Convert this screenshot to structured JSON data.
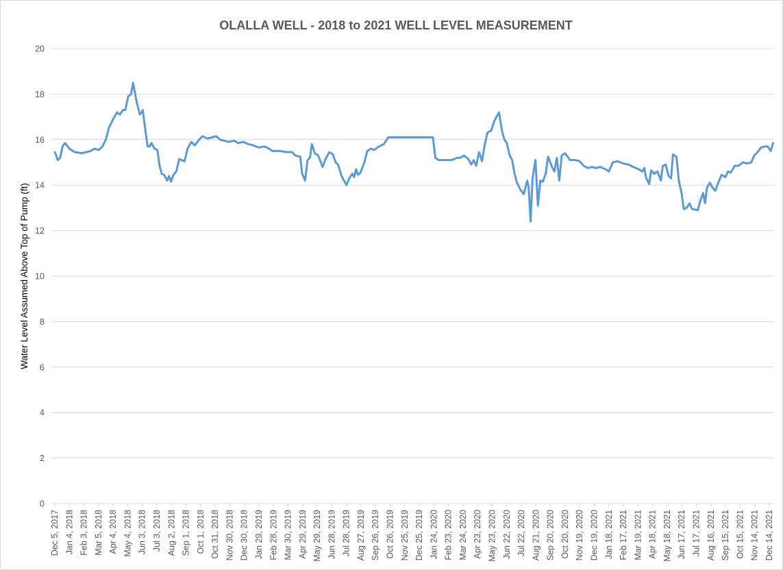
{
  "chart_data": {
    "type": "line",
    "title": "OLALLA WELL - 2018 to 2021 WELL LEVEL MEASUREMENT",
    "y_label": "Water Level Assumed Above Top of Pump (ft)",
    "ylim": [
      0,
      20
    ],
    "yticks": [
      0,
      2,
      4,
      6,
      8,
      10,
      12,
      14,
      16,
      18,
      20
    ],
    "xlim": [
      "Dec 5, 2017",
      "Dec 24, 2021"
    ],
    "xticks": [
      "Dec 5, 2017",
      "Jan 4, 2018",
      "Feb 3, 2018",
      "Mar 5, 2018",
      "Apr 4, 2018",
      "May 4, 2018",
      "Jun 3, 2018",
      "Jul 3, 2018",
      "Aug 2, 2018",
      "Sep 1, 2018",
      "Oct 1, 2018",
      "Oct 31, 2018",
      "Nov 30, 2018",
      "Dec 30, 2018",
      "Jan 29, 2019",
      "Feb 28, 2019",
      "Mar 30, 2019",
      "Apr 29, 2019",
      "May 29, 2019",
      "Jun 28, 2019",
      "Jul 28, 2019",
      "Aug 27, 2019",
      "Sep 26, 2019",
      "Oct 26, 2019",
      "Nov 25, 2019",
      "Dec 25, 2019",
      "Jan 24, 2020",
      "Feb 23, 2020",
      "Mar 24, 2020",
      "Apr 23, 2020",
      "May 23, 2020",
      "Jun 22, 2020",
      "Jul 22, 2020",
      "Aug 21, 2020",
      "Sep 20, 2020",
      "Oct 20, 2020",
      "Nov 19, 2020",
      "Dec 19, 2020",
      "Jan 18, 2021",
      "Feb 17, 2021",
      "Mar 19, 2021",
      "Apr 18, 2021",
      "May 18, 2021",
      "Jun 17, 2021",
      "Jul 17, 2021",
      "Aug 16, 2021",
      "Sep 15, 2021",
      "Oct 15, 2021",
      "Nov 14, 2021",
      "Dec 14, 2021"
    ],
    "grid": true,
    "x": [
      "Dec 5, 2017",
      "Dec 7, 2017",
      "Dec 11, 2017",
      "Dec 16, 2017",
      "Dec 21, 2017",
      "Dec 26, 2017",
      "Jan 4, 2018",
      "Jan 15, 2018",
      "Jan 30, 2018",
      "Feb 17, 2018",
      "Feb 24, 2018",
      "Mar 6, 2018",
      "Mar 13, 2018",
      "Mar 20, 2018",
      "Mar 26, 2018",
      "Apr 4, 2018",
      "Apr 12, 2018",
      "Apr 18, 2018",
      "Apr 24, 2018",
      "Apr 29, 2018",
      "May 5, 2018",
      "May 11, 2018",
      "May 15, 2018",
      "May 23, 2018",
      "May 29, 2018",
      "Jun 4, 2018",
      "Jun 10, 2018",
      "Jun 14, 2018",
      "Jun 18, 2018",
      "Jun 22, 2018",
      "Jun 28, 2018",
      "Jul 4, 2018",
      "Jul 9, 2018",
      "Jul 13, 2018",
      "Jul 18, 2018",
      "Jul 24, 2018",
      "Jul 28, 2018",
      "Aug 1, 2018",
      "Aug 6, 2018",
      "Aug 12, 2018",
      "Aug 18, 2018",
      "Aug 23, 2018",
      "Aug 29, 2018",
      "Sep 4, 2018",
      "Sep 12, 2018",
      "Sep 19, 2018",
      "Sep 28, 2018",
      "Oct 5, 2018",
      "Oct 15, 2018",
      "Oct 25, 2018",
      "Nov 2, 2018",
      "Nov 10, 2018",
      "Nov 19, 2018",
      "Nov 27, 2018",
      "Dec 10, 2018",
      "Dec 17, 2018",
      "Dec 28, 2018",
      "Jan 7, 2019",
      "Jan 17, 2019",
      "Jan 29, 2019",
      "Feb 9, 2019",
      "Feb 19, 2019",
      "Feb 26, 2019",
      "Mar 13, 2019",
      "Mar 27, 2019",
      "Apr 7, 2019",
      "Apr 14, 2019",
      "Apr 24, 2019",
      "Apr 28, 2019",
      "May 4, 2019",
      "May 9, 2019",
      "May 14, 2019",
      "May 18, 2019",
      "May 24, 2019",
      "May 31, 2019",
      "Jun 9, 2019",
      "Jun 16, 2019",
      "Jun 23, 2019",
      "Jun 30, 2019",
      "Jul 6, 2019",
      "Jul 11, 2019",
      "Jul 18, 2019",
      "Jul 28, 2019",
      "Aug 3, 2019",
      "Aug 9, 2019",
      "Aug 13, 2019",
      "Aug 17, 2019",
      "Aug 21, 2019",
      "Aug 26, 2019",
      "Sep 3, 2019",
      "Sep 9, 2019",
      "Sep 16, 2019",
      "Sep 23, 2019",
      "Oct 3, 2019",
      "Oct 13, 2019",
      "Oct 22, 2019",
      "Jan 22, 2020",
      "Jan 27, 2020",
      "Feb 3, 2020",
      "Feb 18, 2020",
      "Feb 29, 2020",
      "Mar 12, 2020",
      "Mar 18, 2020",
      "Mar 26, 2020",
      "Apr 4, 2020",
      "Apr 10, 2020",
      "Apr 15, 2020",
      "Apr 20, 2020",
      "Apr 26, 2020",
      "May 2, 2020",
      "May 7, 2020",
      "May 13, 2020",
      "May 21, 2020",
      "May 27, 2020",
      "Jun 2, 2020",
      "Jun 6, 2020",
      "Jun 12, 2020",
      "Jun 17, 2020",
      "Jun 22, 2020",
      "Jun 28, 2020",
      "Jul 3, 2020",
      "Jul 8, 2020",
      "Jul 13, 2020",
      "Jul 20, 2020",
      "Jul 27, 2020",
      "Aug 3, 2020",
      "Aug 6, 2020",
      "Aug 10, 2020",
      "Aug 14, 2020",
      "Aug 20, 2020",
      "Aug 25, 2020",
      "Aug 30, 2020",
      "Sep 4, 2020",
      "Sep 10, 2020",
      "Sep 15, 2020",
      "Sep 23, 2020",
      "Sep 28, 2020",
      "Oct 3, 2020",
      "Oct 8, 2020",
      "Oct 13, 2020",
      "Oct 20, 2020",
      "Oct 30, 2020",
      "Nov 10, 2020",
      "Nov 19, 2020",
      "Nov 27, 2020",
      "Dec 6, 2020",
      "Dec 14, 2020",
      "Dec 22, 2020",
      "Dec 31, 2020",
      "Jan 11, 2021",
      "Jan 18, 2021",
      "Jan 26, 2021",
      "Feb 5, 2021",
      "Feb 17, 2021",
      "Feb 28, 2021",
      "Mar 9, 2021",
      "Mar 20, 2021",
      "Mar 28, 2021",
      "Apr 1, 2021",
      "Apr 5, 2021",
      "Apr 11, 2021",
      "Apr 15, 2021",
      "Apr 21, 2021",
      "Apr 28, 2021",
      "May 5, 2021",
      "May 9, 2021",
      "May 15, 2021",
      "May 21, 2021",
      "May 26, 2021",
      "May 30, 2021",
      "Jun 6, 2021",
      "Jun 11, 2021",
      "Jun 17, 2021",
      "Jun 21, 2021",
      "Jun 27, 2021",
      "Jul 3, 2021",
      "Jul 8, 2021",
      "Jul 20, 2021",
      "Jul 25, 2021",
      "Jul 31, 2021",
      "Aug 4, 2021",
      "Aug 8, 2021",
      "Aug 14, 2021",
      "Aug 19, 2021",
      "Aug 25, 2021",
      "Aug 31, 2021",
      "Sep 7, 2021",
      "Sep 15, 2021",
      "Sep 20, 2021",
      "Sep 26, 2021",
      "Oct 4, 2021",
      "Oct 12, 2021",
      "Oct 21, 2021",
      "Oct 29, 2021",
      "Nov 7, 2021",
      "Nov 13, 2021",
      "Nov 20, 2021",
      "Nov 27, 2021",
      "Dec 5, 2021",
      "Dec 11, 2021",
      "Dec 17, 2021",
      "Dec 22, 2021"
    ],
    "series": [
      {
        "color": "#5b9bd5",
        "values": [
          15.45,
          15.35,
          15.1,
          15.2,
          15.7,
          15.85,
          15.6,
          15.45,
          15.4,
          15.5,
          15.6,
          15.55,
          15.7,
          16.0,
          16.5,
          16.9,
          17.2,
          17.1,
          17.3,
          17.3,
          17.9,
          18.0,
          18.5,
          17.6,
          17.1,
          17.3,
          16.3,
          15.7,
          15.7,
          15.85,
          15.6,
          15.55,
          14.8,
          14.5,
          14.45,
          14.2,
          14.4,
          14.15,
          14.45,
          14.6,
          15.15,
          15.1,
          15.05,
          15.6,
          15.9,
          15.75,
          16.0,
          16.15,
          16.05,
          16.1,
          16.15,
          16.0,
          15.95,
          15.9,
          15.95,
          15.85,
          15.9,
          15.8,
          15.75,
          15.65,
          15.7,
          15.6,
          15.5,
          15.5,
          15.45,
          15.45,
          15.3,
          15.25,
          14.5,
          14.2,
          15.1,
          15.2,
          15.8,
          15.4,
          15.3,
          14.8,
          15.2,
          15.45,
          15.35,
          15.0,
          14.9,
          14.4,
          14.0,
          14.3,
          14.5,
          14.35,
          14.7,
          14.45,
          14.55,
          15.0,
          15.5,
          15.6,
          15.55,
          15.7,
          15.8,
          16.1,
          16.1,
          15.2,
          15.1,
          15.1,
          15.1,
          15.2,
          15.2,
          15.3,
          15.15,
          14.9,
          15.1,
          14.85,
          15.45,
          15.05,
          15.7,
          16.3,
          16.4,
          16.8,
          17.05,
          17.2,
          16.4,
          16.0,
          15.85,
          15.3,
          15.1,
          14.5,
          14.1,
          13.8,
          13.6,
          14.2,
          13.9,
          12.4,
          14.3,
          15.1,
          13.1,
          14.2,
          14.15,
          14.5,
          15.25,
          14.8,
          14.6,
          15.2,
          14.2,
          15.3,
          15.4,
          15.1,
          15.1,
          15.05,
          14.85,
          14.75,
          14.8,
          14.75,
          14.8,
          14.7,
          14.6,
          15.0,
          15.05,
          14.95,
          14.9,
          14.8,
          14.7,
          14.6,
          14.75,
          14.3,
          14.05,
          14.65,
          14.5,
          14.6,
          14.2,
          14.85,
          14.9,
          14.4,
          14.3,
          15.35,
          15.25,
          14.2,
          13.6,
          12.95,
          13.0,
          13.2,
          12.95,
          12.9,
          13.3,
          13.65,
          13.2,
          13.9,
          14.1,
          13.9,
          13.75,
          14.1,
          14.45,
          14.35,
          14.6,
          14.55,
          14.85,
          14.85,
          15.0,
          14.95,
          15.0,
          15.3,
          15.45,
          15.65,
          15.7,
          15.7,
          15.5,
          15.85
        ]
      }
    ]
  }
}
